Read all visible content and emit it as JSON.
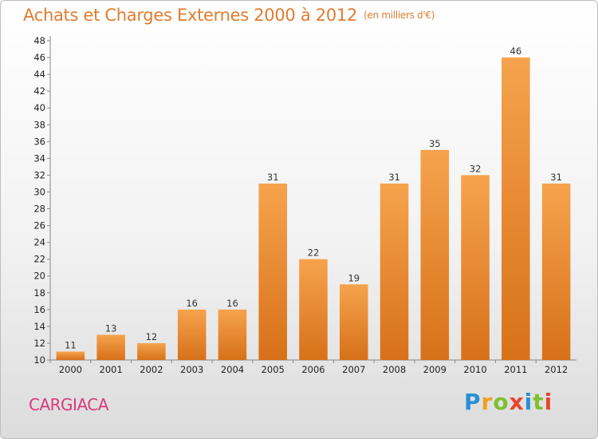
{
  "title": "Achats et Charges Externes 2000 à 2012",
  "title_unit": "(en milliers d'€)",
  "place_name": "CARGIACA",
  "logo_text": "Proxiti",
  "colors": {
    "bar_top": "#f6a34d",
    "bar_bottom": "#d77119",
    "title": "#e07c2f",
    "place": "#d93a7a"
  },
  "chart_data": {
    "type": "bar",
    "title": "Achats et Charges Externes 2000 à 2012",
    "subtitle": "(en milliers d'€)",
    "categories": [
      "2000",
      "2001",
      "2002",
      "2003",
      "2004",
      "2005",
      "2006",
      "2007",
      "2008",
      "2009",
      "2010",
      "2011",
      "2012"
    ],
    "values": [
      11,
      13,
      12,
      16,
      16,
      31,
      22,
      19,
      31,
      35,
      32,
      46,
      31
    ],
    "ylim": [
      10,
      48
    ],
    "yticks": [
      10,
      12,
      14,
      16,
      18,
      20,
      22,
      24,
      26,
      28,
      30,
      32,
      34,
      36,
      38,
      40,
      42,
      44,
      46,
      48
    ],
    "grid": false,
    "data_labels": true
  }
}
